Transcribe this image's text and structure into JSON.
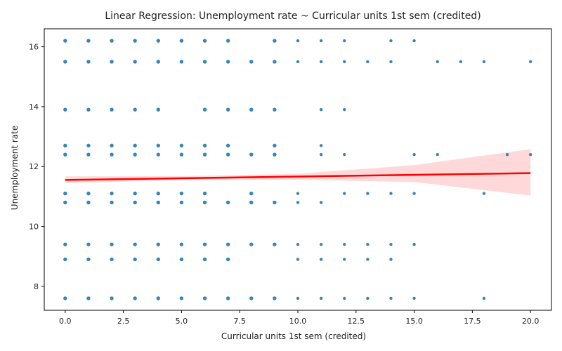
{
  "chart_data": {
    "type": "scatter",
    "title": "Linear Regression: Unemployment rate ~ Curricular units 1st sem (credited)",
    "xlabel": "Curricular units 1st sem (credited)",
    "ylabel": "Unemployment rate",
    "xlim": [
      -0.9,
      20.9
    ],
    "ylim": [
      7.2,
      16.6
    ],
    "x_ticks": [
      0.0,
      2.5,
      5.0,
      7.5,
      10.0,
      12.5,
      15.0,
      17.5,
      20.0
    ],
    "x_tick_labels": [
      "0.0",
      "2.5",
      "5.0",
      "7.5",
      "10.0",
      "12.5",
      "15.0",
      "17.5",
      "20.0"
    ],
    "y_ticks": [
      8,
      10,
      12,
      14,
      16
    ],
    "y_tick_labels": [
      "8",
      "10",
      "12",
      "14",
      "16"
    ],
    "grid": false,
    "colors": {
      "points": "#1f77b4",
      "line": "#ff0000",
      "band": "#ff0000"
    },
    "points": [
      {
        "x": 0,
        "y": 16.2
      },
      {
        "x": 1,
        "y": 16.2
      },
      {
        "x": 2,
        "y": 16.2
      },
      {
        "x": 3,
        "y": 16.2
      },
      {
        "x": 4,
        "y": 16.2
      },
      {
        "x": 5,
        "y": 16.2
      },
      {
        "x": 6,
        "y": 16.2
      },
      {
        "x": 7,
        "y": 16.2
      },
      {
        "x": 9,
        "y": 16.2
      },
      {
        "x": 10,
        "y": 16.2
      },
      {
        "x": 11,
        "y": 16.2
      },
      {
        "x": 12,
        "y": 16.2
      },
      {
        "x": 14,
        "y": 16.2
      },
      {
        "x": 15,
        "y": 16.2
      },
      {
        "x": 0,
        "y": 15.5
      },
      {
        "x": 1,
        "y": 15.5
      },
      {
        "x": 2,
        "y": 15.5
      },
      {
        "x": 3,
        "y": 15.5
      },
      {
        "x": 4,
        "y": 15.5
      },
      {
        "x": 5,
        "y": 15.5
      },
      {
        "x": 6,
        "y": 15.5
      },
      {
        "x": 7,
        "y": 15.5
      },
      {
        "x": 8,
        "y": 15.5
      },
      {
        "x": 9,
        "y": 15.5
      },
      {
        "x": 10,
        "y": 15.5
      },
      {
        "x": 11,
        "y": 15.5
      },
      {
        "x": 12,
        "y": 15.5
      },
      {
        "x": 13,
        "y": 15.5
      },
      {
        "x": 14,
        "y": 15.5
      },
      {
        "x": 16,
        "y": 15.5
      },
      {
        "x": 17,
        "y": 15.5
      },
      {
        "x": 18,
        "y": 15.5
      },
      {
        "x": 20,
        "y": 15.5
      },
      {
        "x": 0,
        "y": 13.9
      },
      {
        "x": 1,
        "y": 13.9
      },
      {
        "x": 2,
        "y": 13.9
      },
      {
        "x": 3,
        "y": 13.9
      },
      {
        "x": 4,
        "y": 13.9
      },
      {
        "x": 6,
        "y": 13.9
      },
      {
        "x": 7,
        "y": 13.9
      },
      {
        "x": 8,
        "y": 13.9
      },
      {
        "x": 9,
        "y": 13.9
      },
      {
        "x": 11,
        "y": 13.9
      },
      {
        "x": 12,
        "y": 13.9
      },
      {
        "x": 0,
        "y": 12.7
      },
      {
        "x": 1,
        "y": 12.7
      },
      {
        "x": 2,
        "y": 12.7
      },
      {
        "x": 3,
        "y": 12.7
      },
      {
        "x": 4,
        "y": 12.7
      },
      {
        "x": 5,
        "y": 12.7
      },
      {
        "x": 6,
        "y": 12.7
      },
      {
        "x": 7,
        "y": 12.7
      },
      {
        "x": 9,
        "y": 12.7
      },
      {
        "x": 11,
        "y": 12.7
      },
      {
        "x": 0,
        "y": 12.4
      },
      {
        "x": 1,
        "y": 12.4
      },
      {
        "x": 2,
        "y": 12.4
      },
      {
        "x": 3,
        "y": 12.4
      },
      {
        "x": 4,
        "y": 12.4
      },
      {
        "x": 5,
        "y": 12.4
      },
      {
        "x": 6,
        "y": 12.4
      },
      {
        "x": 7,
        "y": 12.4
      },
      {
        "x": 8,
        "y": 12.4
      },
      {
        "x": 9,
        "y": 12.4
      },
      {
        "x": 11,
        "y": 12.4
      },
      {
        "x": 12,
        "y": 12.4
      },
      {
        "x": 15,
        "y": 12.4
      },
      {
        "x": 16,
        "y": 12.4
      },
      {
        "x": 19,
        "y": 12.4
      },
      {
        "x": 20,
        "y": 12.4
      },
      {
        "x": 0,
        "y": 11.1
      },
      {
        "x": 1,
        "y": 11.1
      },
      {
        "x": 2,
        "y": 11.1
      },
      {
        "x": 3,
        "y": 11.1
      },
      {
        "x": 4,
        "y": 11.1
      },
      {
        "x": 5,
        "y": 11.1
      },
      {
        "x": 6,
        "y": 11.1
      },
      {
        "x": 8,
        "y": 11.1
      },
      {
        "x": 10,
        "y": 11.1
      },
      {
        "x": 12,
        "y": 11.1
      },
      {
        "x": 13,
        "y": 11.1
      },
      {
        "x": 14,
        "y": 11.1
      },
      {
        "x": 15,
        "y": 11.1
      },
      {
        "x": 18,
        "y": 11.1
      },
      {
        "x": 0,
        "y": 10.8
      },
      {
        "x": 1,
        "y": 10.8
      },
      {
        "x": 2,
        "y": 10.8
      },
      {
        "x": 3,
        "y": 10.8
      },
      {
        "x": 4,
        "y": 10.8
      },
      {
        "x": 5,
        "y": 10.8
      },
      {
        "x": 6,
        "y": 10.8
      },
      {
        "x": 7,
        "y": 10.8
      },
      {
        "x": 8,
        "y": 10.8
      },
      {
        "x": 9,
        "y": 10.8
      },
      {
        "x": 10,
        "y": 10.8
      },
      {
        "x": 11,
        "y": 10.8
      },
      {
        "x": 0,
        "y": 9.4
      },
      {
        "x": 1,
        "y": 9.4
      },
      {
        "x": 2,
        "y": 9.4
      },
      {
        "x": 3,
        "y": 9.4
      },
      {
        "x": 4,
        "y": 9.4
      },
      {
        "x": 5,
        "y": 9.4
      },
      {
        "x": 6,
        "y": 9.4
      },
      {
        "x": 7,
        "y": 9.4
      },
      {
        "x": 8,
        "y": 9.4
      },
      {
        "x": 9,
        "y": 9.4
      },
      {
        "x": 10,
        "y": 9.4
      },
      {
        "x": 11,
        "y": 9.4
      },
      {
        "x": 12,
        "y": 9.4
      },
      {
        "x": 13,
        "y": 9.4
      },
      {
        "x": 14,
        "y": 9.4
      },
      {
        "x": 15,
        "y": 9.4
      },
      {
        "x": 0,
        "y": 8.9
      },
      {
        "x": 1,
        "y": 8.9
      },
      {
        "x": 2,
        "y": 8.9
      },
      {
        "x": 3,
        "y": 8.9
      },
      {
        "x": 4,
        "y": 8.9
      },
      {
        "x": 5,
        "y": 8.9
      },
      {
        "x": 6,
        "y": 8.9
      },
      {
        "x": 7,
        "y": 8.9
      },
      {
        "x": 10,
        "y": 8.9
      },
      {
        "x": 11,
        "y": 8.9
      },
      {
        "x": 12,
        "y": 8.9
      },
      {
        "x": 13,
        "y": 8.9
      },
      {
        "x": 14,
        "y": 8.9
      },
      {
        "x": 0,
        "y": 7.6
      },
      {
        "x": 1,
        "y": 7.6
      },
      {
        "x": 2,
        "y": 7.6
      },
      {
        "x": 3,
        "y": 7.6
      },
      {
        "x": 4,
        "y": 7.6
      },
      {
        "x": 5,
        "y": 7.6
      },
      {
        "x": 6,
        "y": 7.6
      },
      {
        "x": 7,
        "y": 7.6
      },
      {
        "x": 8,
        "y": 7.6
      },
      {
        "x": 9,
        "y": 7.6
      },
      {
        "x": 10,
        "y": 7.6
      },
      {
        "x": 11,
        "y": 7.6
      },
      {
        "x": 12,
        "y": 7.6
      },
      {
        "x": 13,
        "y": 7.6
      },
      {
        "x": 14,
        "y": 7.6
      },
      {
        "x": 15,
        "y": 7.6
      },
      {
        "x": 18,
        "y": 7.6
      }
    ],
    "regression_line": {
      "x": [
        0,
        20
      ],
      "y": [
        11.55,
        11.78
      ]
    },
    "confidence_band": {
      "x": [
        0,
        5,
        10,
        15,
        20
      ],
      "upper": [
        11.67,
        11.68,
        11.76,
        12.05,
        12.58
      ],
      "lower": [
        11.45,
        11.55,
        11.56,
        11.48,
        11.03
      ]
    }
  }
}
